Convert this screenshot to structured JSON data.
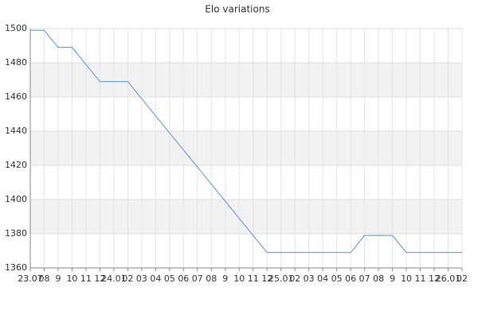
{
  "chart_data": {
    "type": "line",
    "title": "Elo variations",
    "categories": [
      "23.07",
      "08",
      "9",
      "10",
      "11",
      "12",
      "24.01",
      "02",
      "03",
      "04",
      "05",
      "06",
      "07",
      "08",
      "9",
      "10",
      "11",
      "12",
      "25.01",
      "02",
      "03",
      "04",
      "05",
      "06",
      "07",
      "08",
      "9",
      "10",
      "11",
      "12",
      "26.01",
      "02"
    ],
    "series": [
      {
        "color": "#5b8fd6",
        "values": [
          1499,
          1499,
          1489,
          1489,
          1479,
          1469,
          1469,
          1469,
          1459,
          1449,
          1439,
          1429,
          1419,
          1409,
          1399,
          1389,
          1379,
          1369,
          1369,
          1369,
          1369,
          1369,
          1369,
          1369,
          1379,
          1379,
          1379,
          1369,
          1369,
          1369,
          1369,
          1369
        ]
      }
    ],
    "ylim": [
      1360,
      1500
    ],
    "yticks": [
      1360,
      1380,
      1400,
      1420,
      1440,
      1460,
      1480,
      1500
    ],
    "grid": true
  }
}
